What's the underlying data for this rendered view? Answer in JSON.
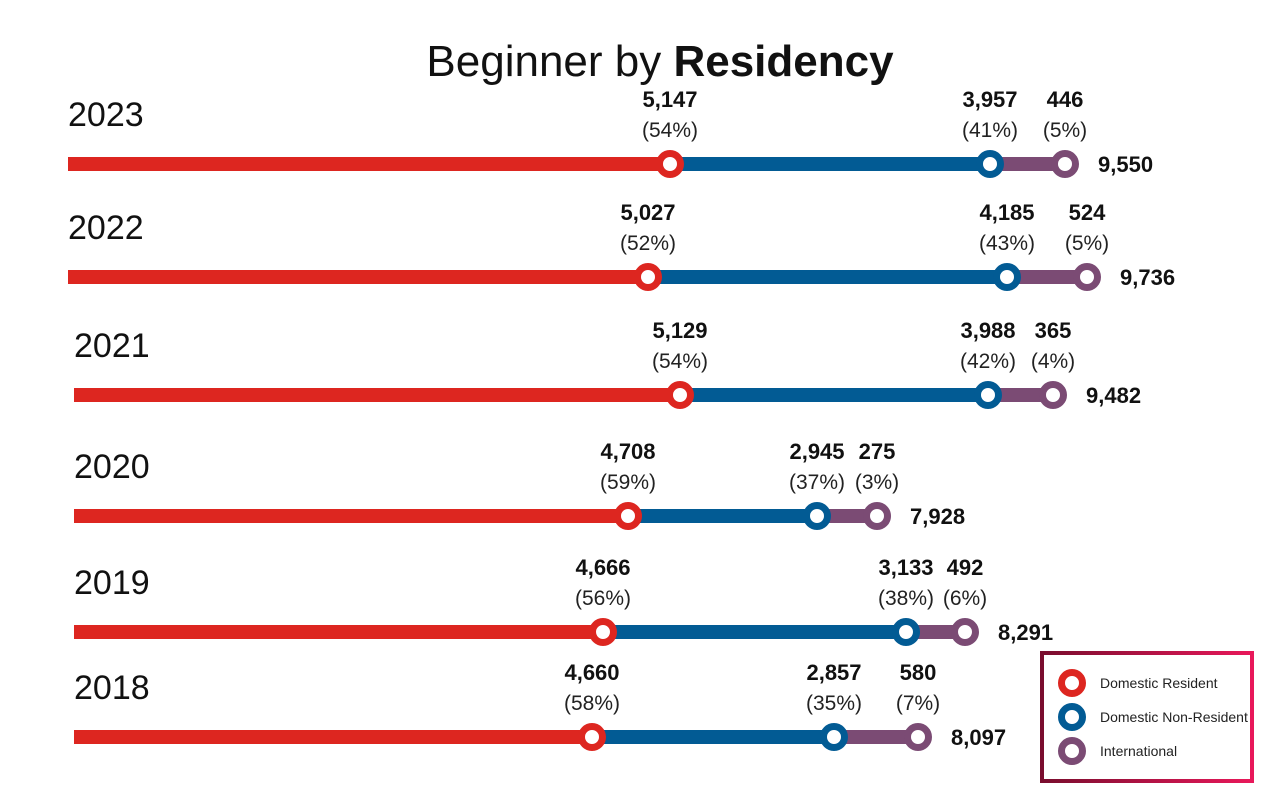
{
  "chart_data": {
    "type": "bar",
    "subtype": "stacked-line-segments",
    "title": {
      "regular": "Beginner by ",
      "bold": "Residency"
    },
    "categories": [
      "2023",
      "2022",
      "2021",
      "2020",
      "2019",
      "2018"
    ],
    "series": [
      {
        "name": "Domestic Resident",
        "color": "#dd2620",
        "values": [
          5147,
          5027,
          5129,
          4708,
          4666,
          4660
        ],
        "pct": [
          "(54%)",
          "(52%)",
          "(54%)",
          "(59%)",
          "(56%)",
          "(58%)"
        ]
      },
      {
        "name": "Domestic Non-Resident",
        "color": "#025b94",
        "values": [
          3957,
          4185,
          3988,
          2945,
          3133,
          2857
        ],
        "pct": [
          "(41%)",
          "(43%)",
          "(42%)",
          "(37%)",
          "(38%)",
          "(35%)"
        ]
      },
      {
        "name": "International",
        "color": "#7b4b74",
        "values": [
          446,
          524,
          365,
          275,
          492,
          580
        ],
        "pct": [
          "(5%)",
          "(5%)",
          "(4%)",
          "(3%)",
          "(6%)",
          "(7%)"
        ]
      }
    ],
    "totals": [
      "9,550",
      "9,736",
      "9,482",
      "7,928",
      "8,291",
      "8,097"
    ],
    "legend_position": "bottom-right",
    "grid": false
  }
}
